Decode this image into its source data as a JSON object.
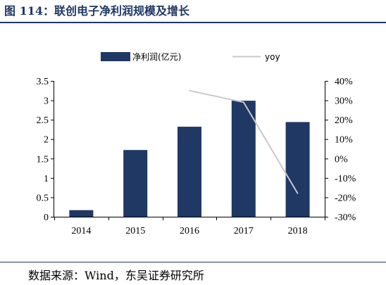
{
  "figure_title": "图 114：联创电子净利润规模及增长",
  "source_note": "数据来源：Wind，东吴证券研究所",
  "colors": {
    "bar": "#1f3864",
    "line": "#c9c9c9",
    "title": "#1f3864"
  },
  "chart_data": {
    "type": "bar",
    "title": "",
    "categories": [
      "2014",
      "2015",
      "2016",
      "2017",
      "2018"
    ],
    "series": [
      {
        "name": "净利润(亿元)",
        "type": "bar",
        "axis": "left",
        "values": [
          0.17,
          1.72,
          2.32,
          2.99,
          2.44
        ]
      },
      {
        "name": "yoy",
        "type": "line",
        "axis": "right",
        "values": [
          null,
          null,
          0.35,
          0.29,
          -0.18
        ]
      }
    ],
    "ylim_left": [
      0,
      3.5
    ],
    "yticks_left": [
      "0",
      "0.5",
      "1",
      "1.5",
      "2",
      "2.5",
      "3",
      "3.5"
    ],
    "ylim_right": [
      -0.3,
      0.4
    ],
    "yticks_right": [
      "-30%",
      "-20%",
      "-10%",
      "0%",
      "10%",
      "20%",
      "30%",
      "40%"
    ],
    "grid": false,
    "legend_position": "top"
  }
}
